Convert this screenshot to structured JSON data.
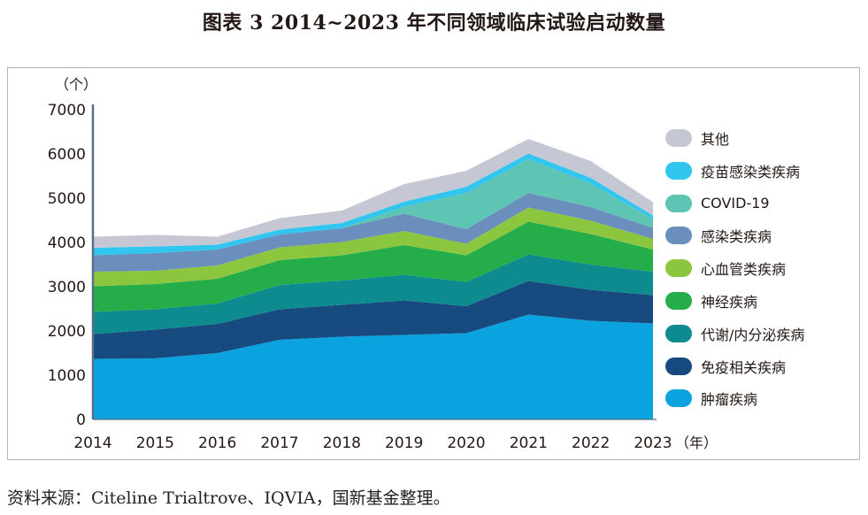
{
  "title": "图表 3  2014~2023 年不同领域临床试验启动数量",
  "source": "资料来源：Citeline Trialtrove、IQVIA，国新基金整理。",
  "chart_data": {
    "type": "area",
    "stacked": true,
    "y_unit_label": "（个）",
    "x_unit_label": "（年）",
    "x": [
      "2014",
      "2015",
      "2016",
      "2017",
      "2018",
      "2019",
      "2020",
      "2021",
      "2022",
      "2023"
    ],
    "ylim": [
      0,
      7000
    ],
    "yticks": [
      0,
      1000,
      2000,
      3000,
      4000,
      5000,
      6000,
      7000
    ],
    "grid": false,
    "legend_position": "right",
    "series": [
      {
        "name": "肿瘤疾病",
        "color": "#0aa3e0",
        "values": [
          1370,
          1380,
          1500,
          1800,
          1870,
          1910,
          1950,
          2370,
          2230,
          2170
        ]
      },
      {
        "name": "免疫相关疾病",
        "color": "#174a7e",
        "values": [
          560,
          650,
          660,
          690,
          720,
          780,
          610,
          760,
          700,
          640
        ]
      },
      {
        "name": "代谢/内分泌疾病",
        "color": "#0d8b8f",
        "values": [
          500,
          460,
          460,
          550,
          550,
          580,
          550,
          600,
          570,
          530
        ]
      },
      {
        "name": "神经疾病",
        "color": "#25ad4a",
        "values": [
          580,
          570,
          560,
          560,
          570,
          670,
          600,
          740,
          690,
          500
        ]
      },
      {
        "name": "心血管类疾病",
        "color": "#8cc63f",
        "values": [
          330,
          300,
          300,
          290,
          300,
          320,
          260,
          320,
          300,
          240
        ]
      },
      {
        "name": "感染类疾病",
        "color": "#6a8fbd",
        "values": [
          370,
          400,
          360,
          290,
          310,
          390,
          330,
          330,
          310,
          250
        ]
      },
      {
        "name": "COVID-19",
        "color": "#5ec4b3",
        "values": [
          0,
          0,
          0,
          0,
          0,
          160,
          820,
          770,
          530,
          200
        ]
      },
      {
        "name": "疫苗感染类疾病",
        "color": "#30c6f0",
        "values": [
          170,
          150,
          110,
          110,
          120,
          110,
          140,
          120,
          130,
          80
        ]
      },
      {
        "name": "其他",
        "color": "#c5c8d4",
        "values": [
          250,
          260,
          180,
          260,
          280,
          400,
          360,
          330,
          380,
          300
        ]
      }
    ]
  }
}
